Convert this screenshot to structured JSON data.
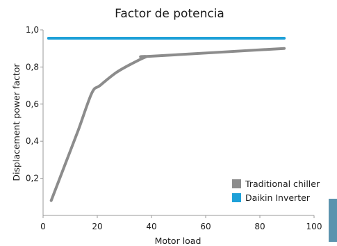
{
  "chart_data": {
    "type": "line",
    "title": "Factor de potencia",
    "xlabel": "Motor load",
    "ylabel": "Displacement power factor",
    "xlim": [
      0,
      100
    ],
    "ylim": [
      0,
      1.0
    ],
    "x_ticks": [
      0,
      20,
      40,
      60,
      80,
      100
    ],
    "y_ticks": [
      0.2,
      0.4,
      0.6,
      0.8,
      1.0
    ],
    "y_tick_labels": [
      "0,2",
      "0,4",
      "0,6",
      "0,8",
      "1,0"
    ],
    "x_tick_labels": [
      "0",
      "20",
      "40",
      "60",
      "80",
      "100"
    ],
    "grid": false,
    "legend_position": "bottom-right",
    "series": [
      {
        "name": "Traditional chiller",
        "color": "#8c8c8c",
        "points": [
          [
            3,
            0.08
          ],
          [
            8,
            0.27
          ],
          [
            13,
            0.46
          ],
          [
            18,
            0.66
          ],
          [
            21,
            0.7
          ],
          [
            27,
            0.77
          ],
          [
            33,
            0.82
          ],
          [
            38,
            0.855
          ],
          [
            40,
            0.858
          ],
          [
            89,
            0.9
          ]
        ]
      },
      {
        "name": "Daikin Inverter",
        "color": "#1ea0d8",
        "points": [
          [
            2,
            0.955
          ],
          [
            89,
            0.955
          ]
        ]
      }
    ],
    "accent_color": "#5b93ae"
  }
}
